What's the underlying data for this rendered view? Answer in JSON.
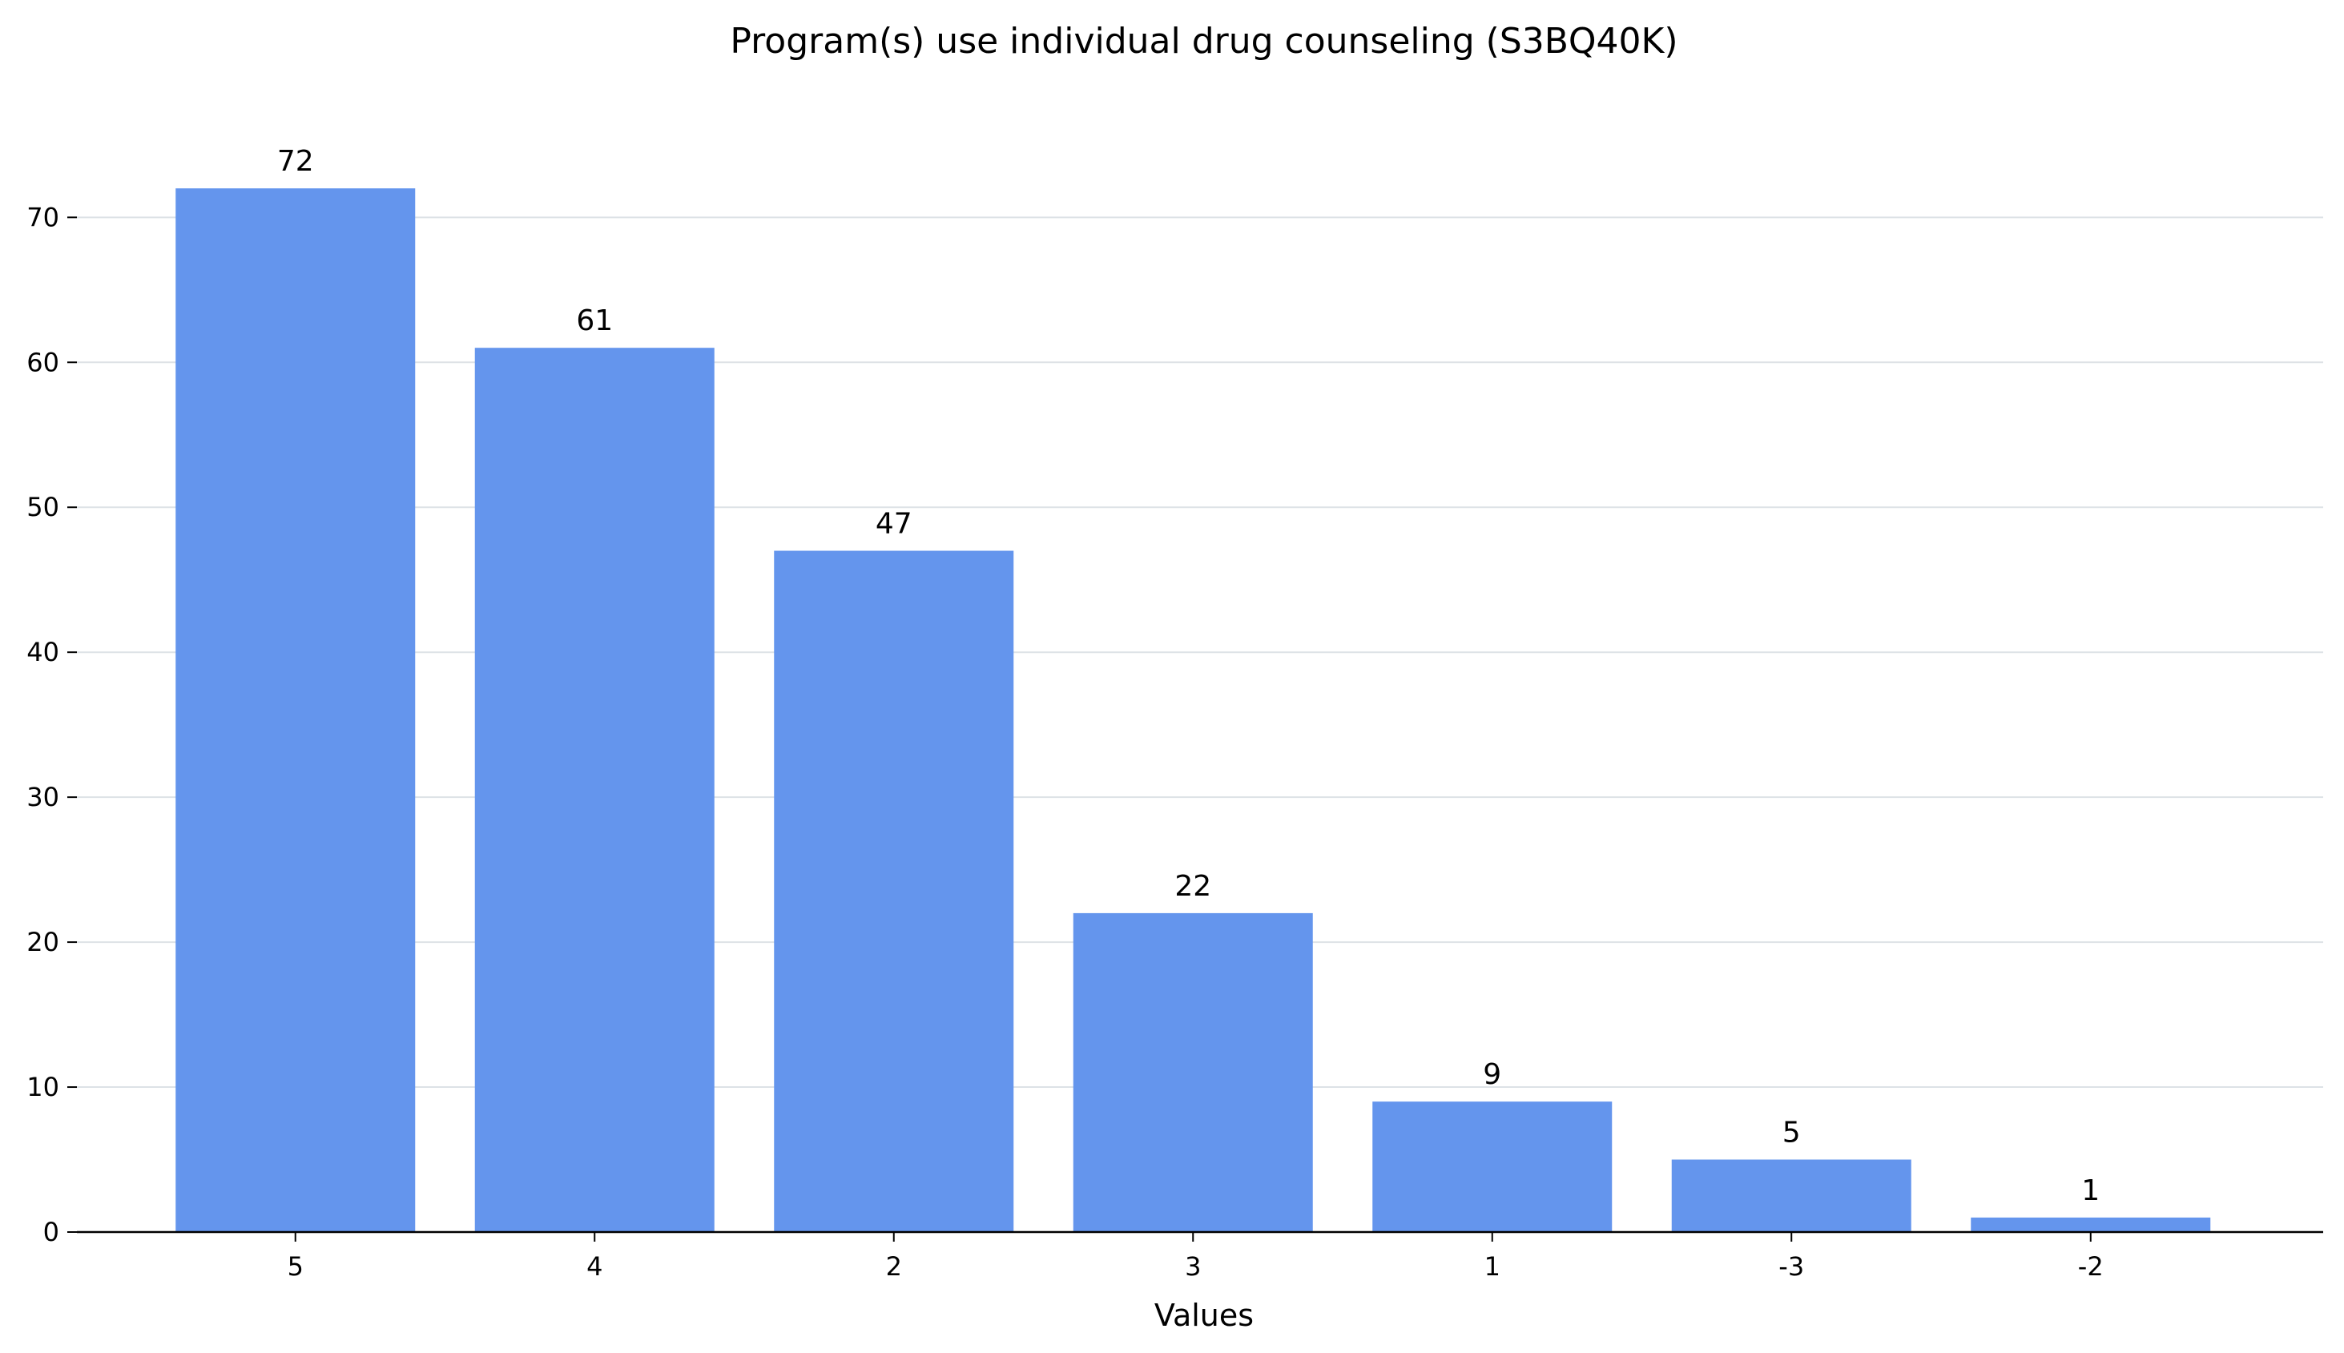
{
  "chart_data": {
    "type": "bar",
    "title": "Program(s) use individual drug counseling (S3BQ40K)",
    "xlabel": "Values",
    "ylabel": "",
    "categories": [
      "5",
      "4",
      "2",
      "3",
      "1",
      "-3",
      "-2"
    ],
    "values": [
      72,
      61,
      47,
      22,
      9,
      5,
      1
    ],
    "data_labels": [
      "72",
      "61",
      "47",
      "22",
      "9",
      "5",
      "1"
    ],
    "yticks": [
      0,
      10,
      20,
      30,
      40,
      50,
      60,
      70
    ],
    "ylim": [
      0,
      75.6
    ],
    "grid": "y-major",
    "legend": "none",
    "colors": {
      "bar": "#6495ED",
      "grid": "#dde2e6",
      "axis": "#000000"
    }
  }
}
